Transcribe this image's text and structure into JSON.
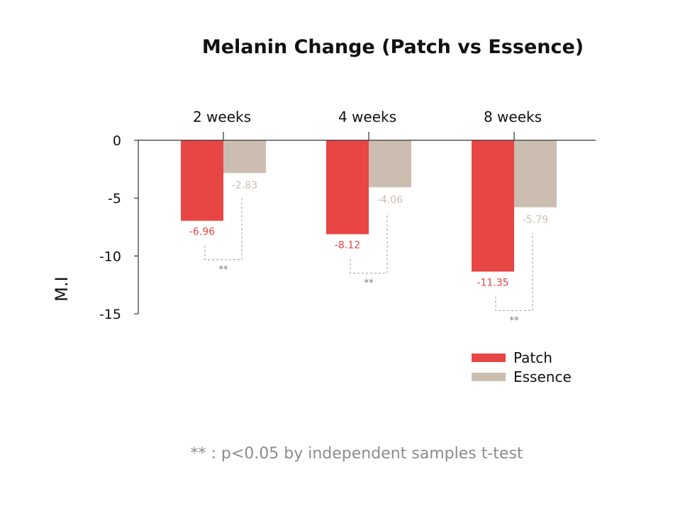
{
  "chart_data": {
    "type": "bar",
    "title": "Melanin Change (Patch vs Essence)",
    "xlabel": "",
    "ylabel": "M.I",
    "categories": [
      "2 weeks",
      "4 weeks",
      "8 weeks"
    ],
    "series": [
      {
        "name": "Patch",
        "values": [
          -6.96,
          -8.12,
          -11.35
        ],
        "labels": [
          "-6.96",
          "-8.12",
          "-11.35"
        ],
        "color": "#e84545"
      },
      {
        "name": "Essence",
        "values": [
          -2.83,
          -4.06,
          -5.79
        ],
        "labels": [
          "-2.83",
          "-4.06",
          "-5.79"
        ],
        "color": "#cbbdb0"
      }
    ],
    "ylim": [
      -15,
      0
    ],
    "yticks": [
      0,
      -5,
      -10,
      -15
    ],
    "ytick_labels": [
      "0",
      "-5",
      "-10",
      "-15"
    ],
    "x_axis_position": "top",
    "grid": false,
    "legend_position": "bottom-right",
    "significance": [
      {
        "category": "2 weeks",
        "label": "**"
      },
      {
        "category": "4 weeks",
        "label": "**"
      },
      {
        "category": "8 weeks",
        "label": "**"
      }
    ],
    "footnote": "** : p<0.05 by independent samples t-test"
  },
  "colors": {
    "axis": "#333333",
    "bracket": "#9a9a9a",
    "significance_text": "#777777",
    "footnote_text": "#8c8c8c"
  }
}
